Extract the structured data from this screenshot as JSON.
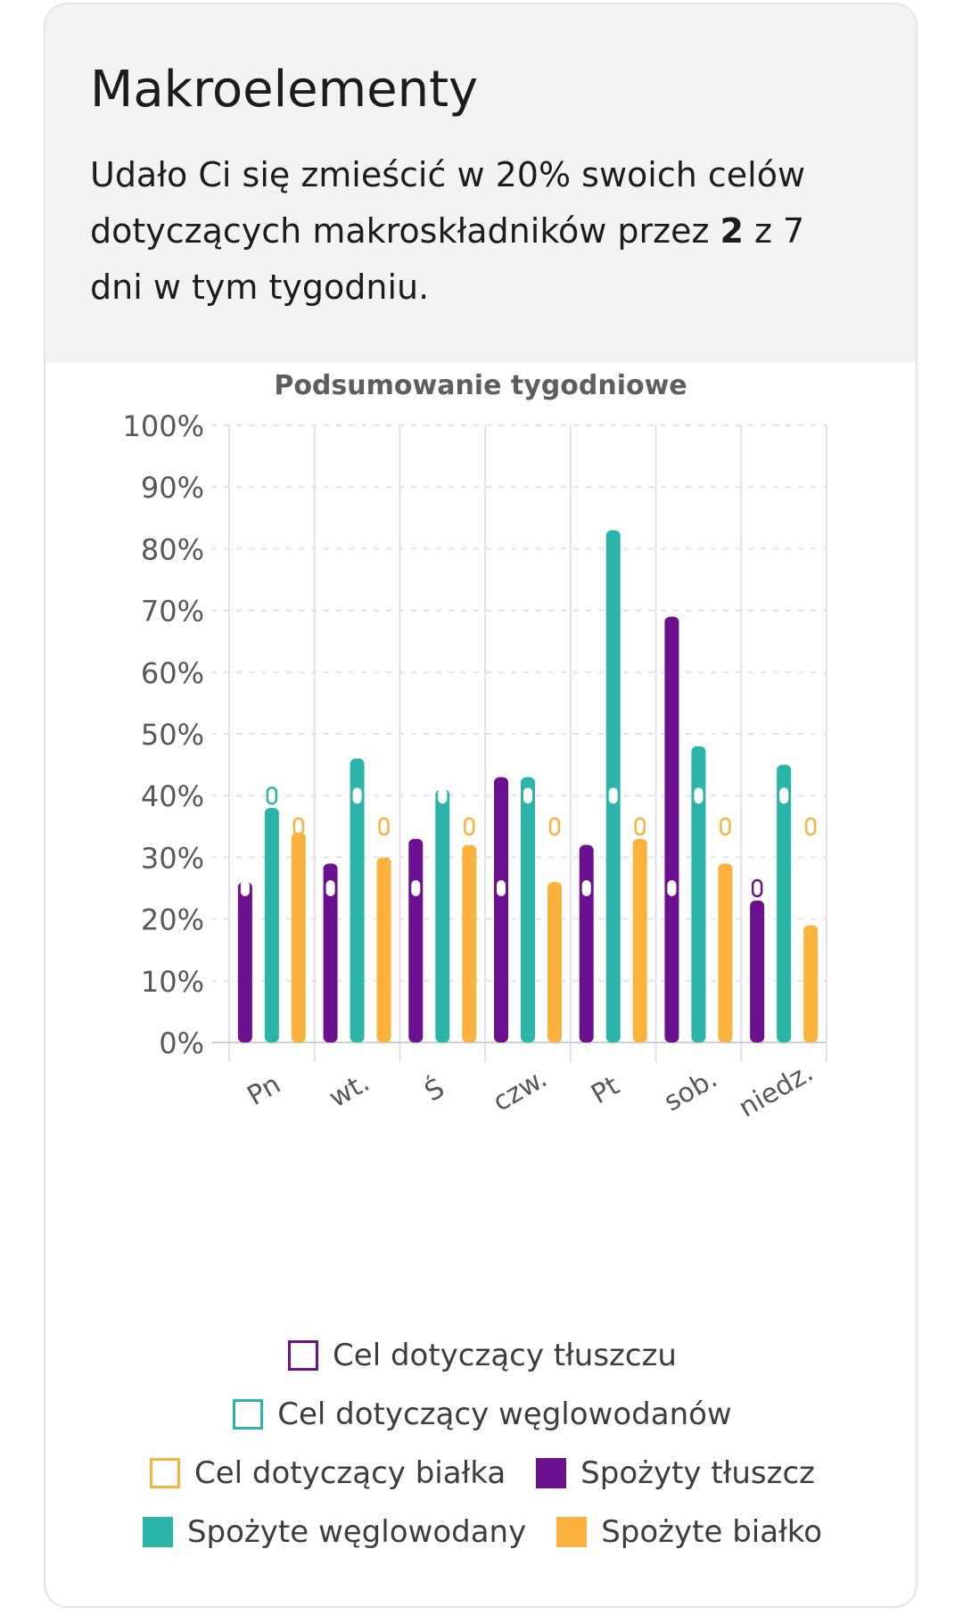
{
  "card": {
    "title": "Makroelementy",
    "summary_before": "Udało Ci się zmieścić w 20% swoich celów dotyczących makroskładników przez ",
    "summary_bold": "2",
    "summary_after": " z 7 dni w tym tygodniu."
  },
  "colors": {
    "fat": "#6b1190",
    "carbs": "#2bb5a8",
    "protein": "#fbb23d",
    "grid": "#e2e2e6",
    "axis_text": "#58585c"
  },
  "chart_data": {
    "type": "bar",
    "title": "Podsumowanie tygodniowe",
    "categories": [
      "Pn",
      "wt.",
      "Ś",
      "czw.",
      "Pt",
      "sob.",
      "niedz."
    ],
    "ylim": [
      0,
      100
    ],
    "yticks": [
      "0%",
      "10%",
      "20%",
      "30%",
      "40%",
      "50%",
      "60%",
      "70%",
      "80%",
      "90%",
      "100%"
    ],
    "grid": true,
    "legend_position": "bottom",
    "series": [
      {
        "name": "Spożyty tłuszcz",
        "key": "fat",
        "values": [
          26,
          29,
          33,
          43,
          32,
          69,
          23
        ]
      },
      {
        "name": "Spożyte węglowodany",
        "key": "carbs",
        "values": [
          38,
          46,
          41,
          43,
          83,
          48,
          45
        ]
      },
      {
        "name": "Spożyte białko",
        "key": "protein",
        "values": [
          34,
          30,
          32,
          26,
          33,
          29,
          19
        ]
      }
    ],
    "goals": [
      {
        "name": "Cel dotyczący tłuszczu",
        "key": "fat",
        "values": [
          25,
          25,
          25,
          25,
          25,
          25,
          25
        ]
      },
      {
        "name": "Cel dotyczący węglowodanów",
        "key": "carbs",
        "values": [
          40,
          40,
          40,
          40,
          40,
          40,
          40
        ]
      },
      {
        "name": "Cel dotyczący białka",
        "key": "protein",
        "values": [
          35,
          35,
          35,
          35,
          35,
          35,
          35
        ]
      }
    ]
  },
  "legend": {
    "rows": [
      [
        {
          "label": "Cel dotyczący tłuszczu",
          "key": "fat",
          "filled": false
        }
      ],
      [
        {
          "label": "Cel dotyczący węglowodanów",
          "key": "carbs",
          "filled": false
        }
      ],
      [
        {
          "label": "Cel dotyczący białka",
          "key": "protein",
          "filled": false
        },
        {
          "label": "Spożyty tłuszcz",
          "key": "fat",
          "filled": true
        }
      ],
      [
        {
          "label": "Spożyte węglowodany",
          "key": "carbs",
          "filled": true
        },
        {
          "label": "Spożyte białko",
          "key": "protein",
          "filled": true
        }
      ]
    ]
  }
}
